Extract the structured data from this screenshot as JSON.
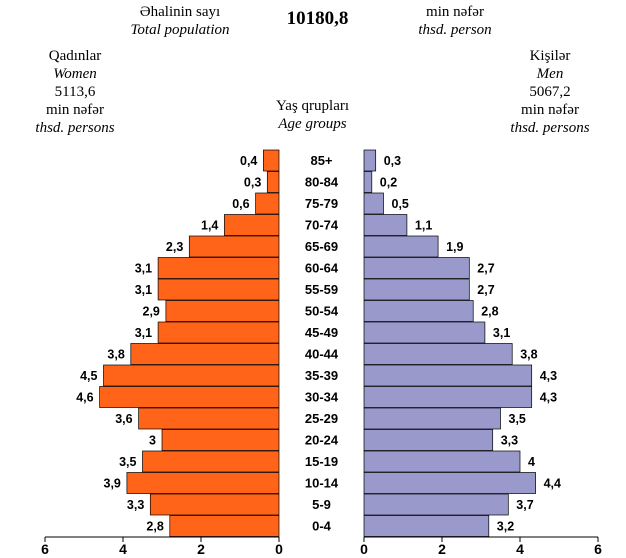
{
  "header": {
    "total_label_az": "Əhalinin sayı",
    "total_label_en": "Total population",
    "total_value": "10180,8",
    "total_unit_az": "min nəfər",
    "total_unit_en": "thsd. person",
    "women_az": "Qadınlar",
    "women_en": "Women",
    "women_value": "5113,6",
    "women_unit_az": "min nəfər",
    "women_unit_en": "thsd. persons",
    "men_az": "Kişilər",
    "men_en": "Men",
    "men_value": "5067,2",
    "men_unit_az": "min nəfər",
    "men_unit_en": "thsd. persons",
    "age_groups_az": "Yaş qrupları",
    "age_groups_en": "Age groups"
  },
  "chart_data": {
    "type": "bar",
    "orientation": "horizontal-pyramid",
    "categories": [
      "85+",
      "80-84",
      "75-79",
      "70-74",
      "65-69",
      "60-64",
      "55-59",
      "50-54",
      "45-49",
      "40-44",
      "35-39",
      "30-34",
      "25-29",
      "20-24",
      "15-19",
      "10-14",
      "5-9",
      "0-4"
    ],
    "series": [
      {
        "name": "Qadınlar / Women",
        "side": "left",
        "color": "#ff6418",
        "values": [
          0.4,
          0.3,
          0.6,
          1.4,
          2.3,
          3.1,
          3.1,
          2.9,
          3.1,
          3.8,
          4.5,
          4.6,
          3.6,
          3.0,
          3.5,
          3.9,
          3.3,
          2.8
        ],
        "labels": [
          "0,4",
          "0,3",
          "0,6",
          "1,4",
          "2,3",
          "3,1",
          "3,1",
          "2,9",
          "3,1",
          "3,8",
          "4,5",
          "4,6",
          "3,6",
          "3",
          "3,5",
          "3,9",
          "3,3",
          "2,8"
        ]
      },
      {
        "name": "Kişilər / Men",
        "side": "right",
        "color": "#9999cc",
        "values": [
          0.3,
          0.2,
          0.5,
          1.1,
          1.9,
          2.7,
          2.7,
          2.8,
          3.1,
          3.8,
          4.3,
          4.3,
          3.5,
          3.3,
          4.0,
          4.4,
          3.7,
          3.2
        ],
        "labels": [
          "0,3",
          "0,2",
          "0,5",
          "1,1",
          "1,9",
          "2,7",
          "2,7",
          "2,8",
          "3,1",
          "3,8",
          "4,3",
          "4,3",
          "3,5",
          "3,3",
          "4",
          "4,4",
          "3,7",
          "3,2"
        ]
      }
    ],
    "xlim": [
      0,
      6
    ],
    "left_ticks": [
      "6",
      "4",
      "2",
      "0"
    ],
    "right_ticks": [
      "0",
      "2",
      "4",
      "6"
    ],
    "grid": false,
    "legend": "none"
  }
}
